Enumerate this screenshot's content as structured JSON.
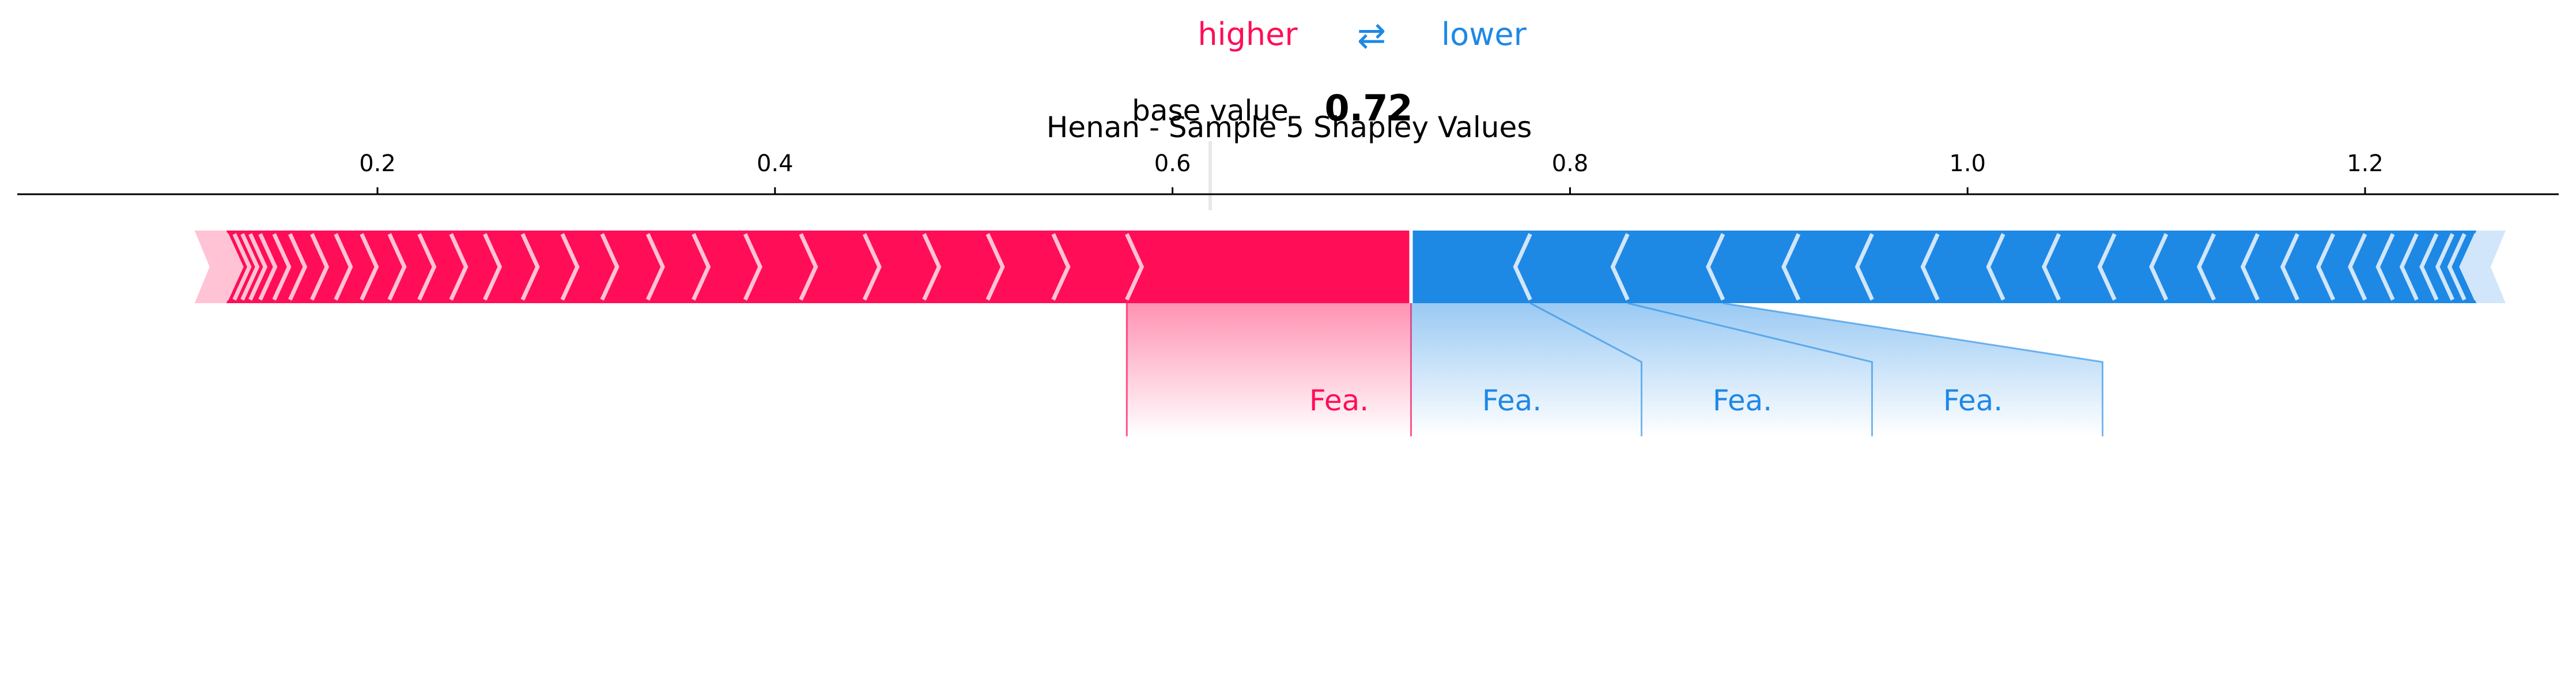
{
  "legend": {
    "higher_label": "higher",
    "arrow": "⇄",
    "lower_label": "lower"
  },
  "base": {
    "label": "base value",
    "value_text": "0.72"
  },
  "colors": {
    "positive": "#ff0d57",
    "negative": "#1e88e5",
    "positive_light": "#ffc3d5",
    "negative_light": "#d1e6fa",
    "axis": "#000000"
  },
  "chart_data": {
    "type": "force",
    "title": "Henan - Sample 5 Shapley Values",
    "base_value": 0.72,
    "output_value": 0.72,
    "xlim": [
      0.11,
      1.45
    ],
    "ticks": [
      0.2,
      0.4,
      0.6,
      0.8,
      1.0,
      1.2
    ],
    "tick_labels": [
      "0.2",
      "0.4",
      "0.6",
      "0.8",
      "1.0",
      "1.2"
    ],
    "higher_segments": [
      [
        0.577,
        0.72
      ],
      [
        0.54,
        0.577
      ],
      [
        0.507,
        0.54
      ],
      [
        0.475,
        0.507
      ],
      [
        0.445,
        0.475
      ],
      [
        0.413,
        0.445
      ],
      [
        0.385,
        0.413
      ],
      [
        0.359,
        0.385
      ],
      [
        0.336,
        0.359
      ],
      [
        0.313,
        0.336
      ],
      [
        0.293,
        0.313
      ],
      [
        0.273,
        0.293
      ],
      [
        0.254,
        0.273
      ],
      [
        0.237,
        0.254
      ],
      [
        0.221,
        0.237
      ],
      [
        0.206,
        0.221
      ],
      [
        0.192,
        0.206
      ],
      [
        0.179,
        0.192
      ],
      [
        0.167,
        0.179
      ],
      [
        0.156,
        0.167
      ],
      [
        0.148,
        0.156
      ],
      [
        0.141,
        0.148
      ],
      [
        0.136,
        0.141
      ],
      [
        0.132,
        0.136
      ],
      [
        0.128,
        0.132
      ],
      [
        0.124,
        0.128
      ]
    ],
    "lower_segments": [
      [
        0.72,
        0.78
      ],
      [
        0.78,
        0.829
      ],
      [
        0.829,
        0.877
      ],
      [
        0.877,
        0.915
      ],
      [
        0.915,
        0.952
      ],
      [
        0.952,
        0.985
      ],
      [
        0.985,
        1.018
      ],
      [
        1.018,
        1.046
      ],
      [
        1.046,
        1.074
      ],
      [
        1.074,
        1.1
      ],
      [
        1.1,
        1.124
      ],
      [
        1.124,
        1.146
      ],
      [
        1.146,
        1.166
      ],
      [
        1.166,
        1.184
      ],
      [
        1.184,
        1.2
      ],
      [
        1.2,
        1.214
      ],
      [
        1.214,
        1.226
      ],
      [
        1.226,
        1.236
      ],
      [
        1.236,
        1.244
      ],
      [
        1.244,
        1.25
      ],
      [
        1.25,
        1.256
      ]
    ],
    "higher_tail": [
      0.108,
      0.124
    ],
    "lower_tail": [
      1.256,
      1.262
    ],
    "labels": [
      {
        "text": "Fea.",
        "side": "higher",
        "segment": 0
      },
      {
        "text": "Fea.",
        "side": "lower",
        "segment": 0
      },
      {
        "text": "Fea.",
        "side": "lower",
        "segment": 1
      },
      {
        "text": "Fea.",
        "side": "lower",
        "segment": 2
      }
    ]
  }
}
